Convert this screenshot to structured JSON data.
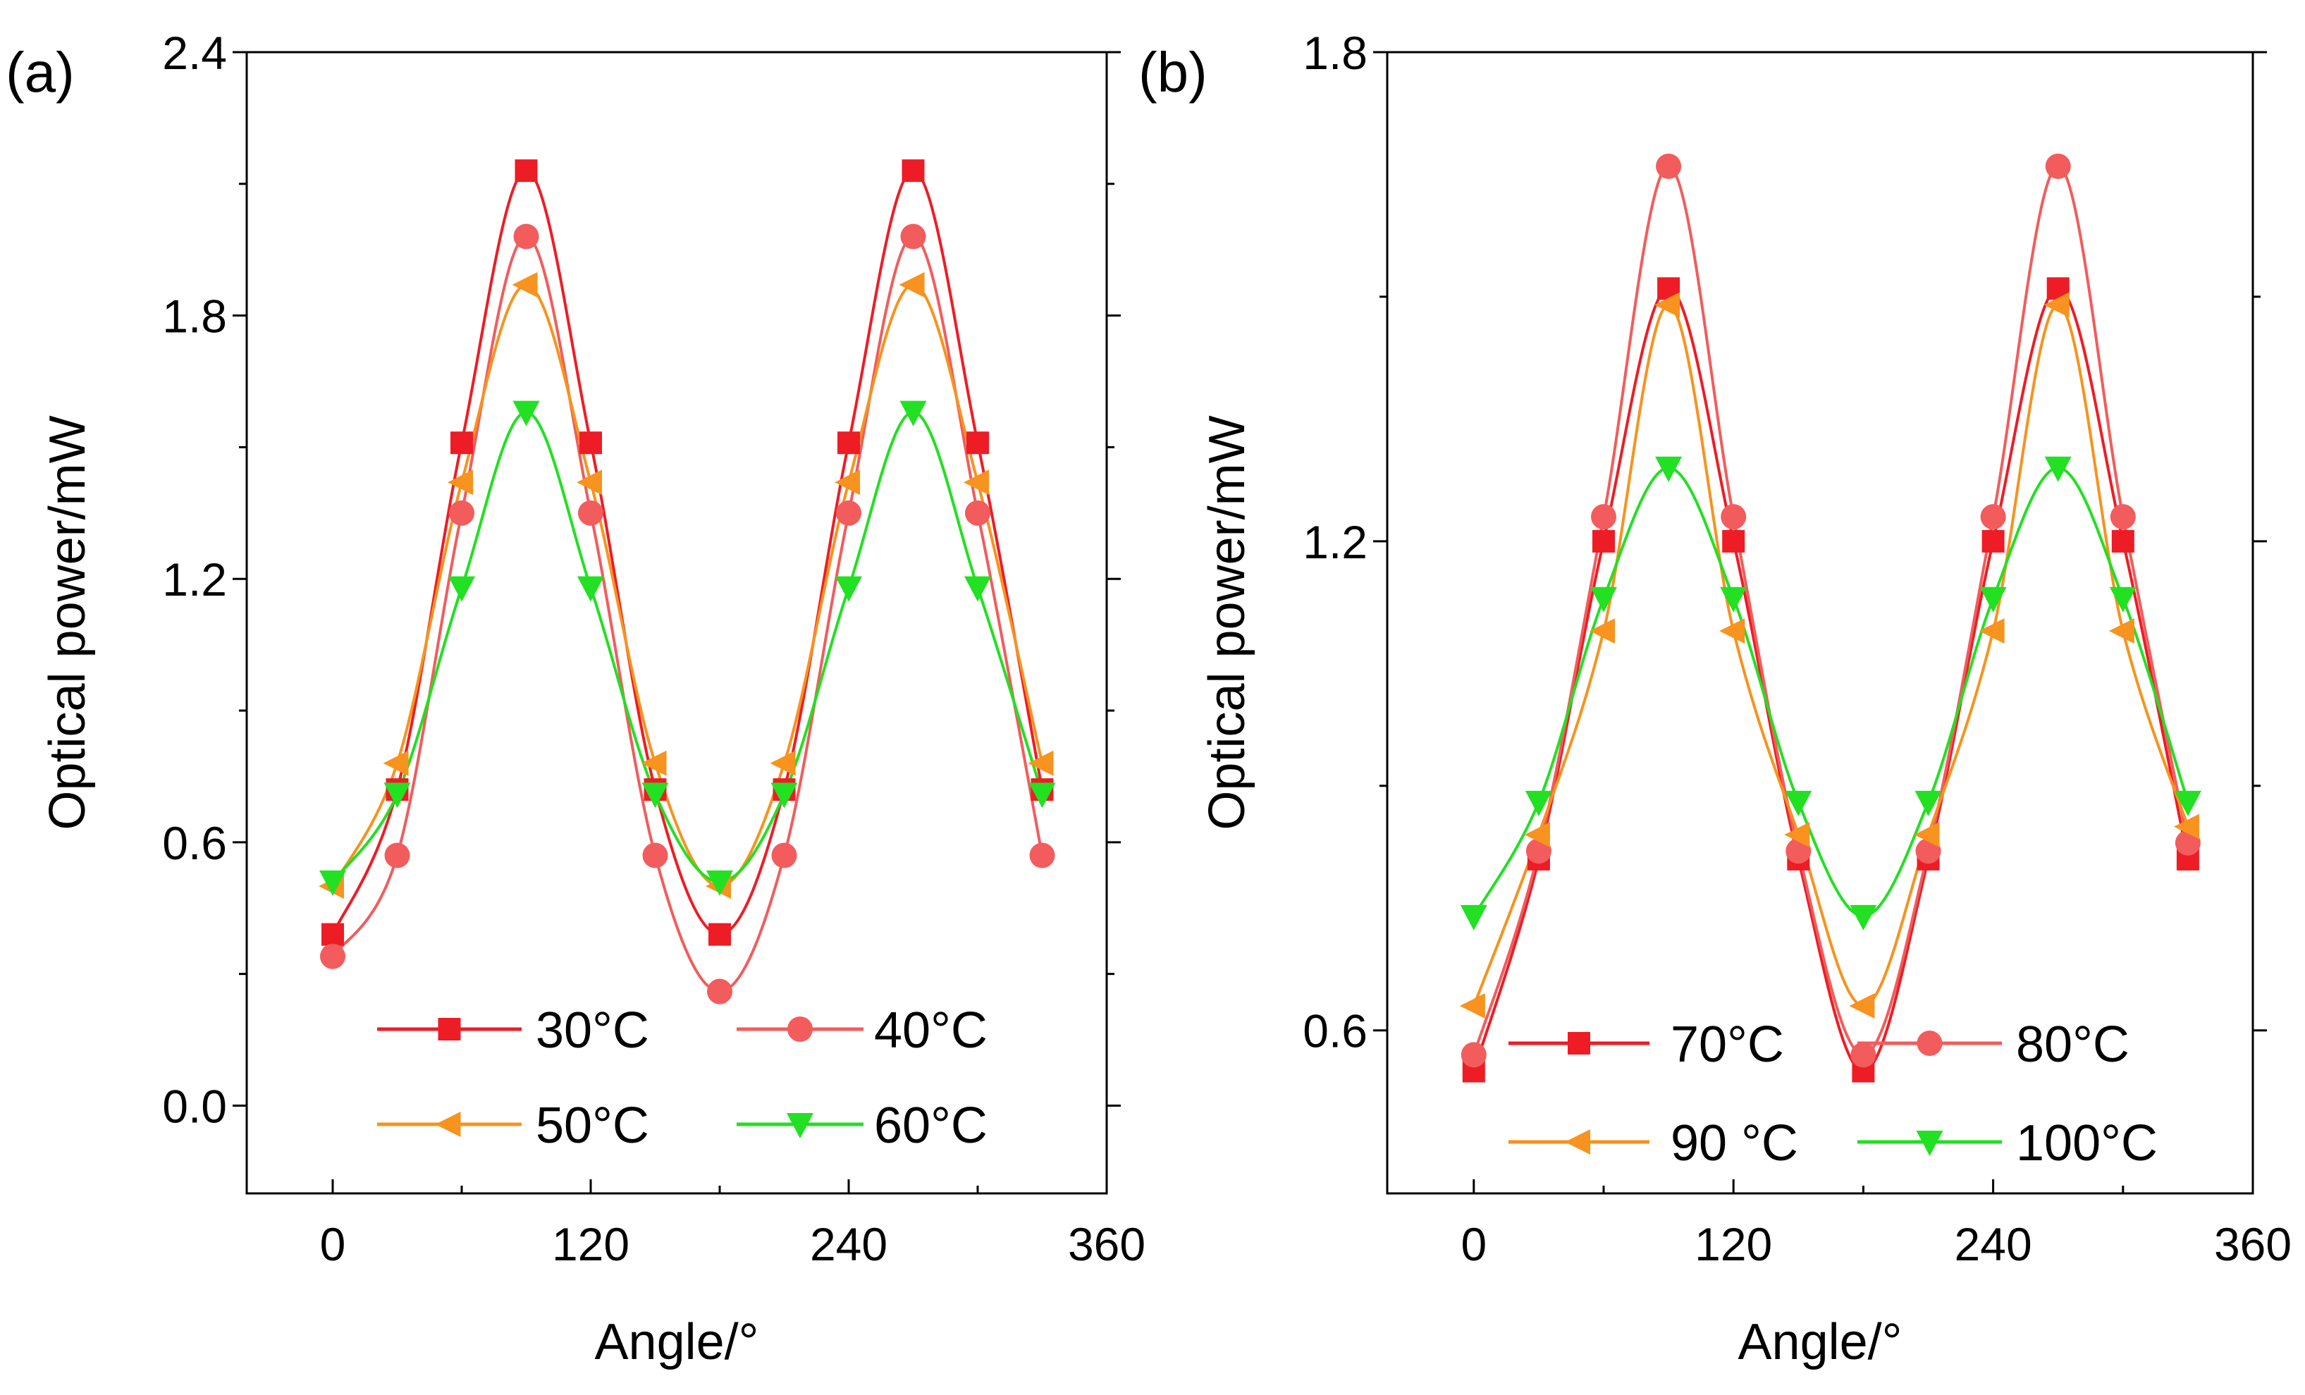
{
  "chart_data": [
    {
      "panel_label": "(a)",
      "type": "line",
      "xlabel": "Angle/°",
      "ylabel": "Optical power/mW",
      "xlim": [
        -40,
        360
      ],
      "ylim": [
        -0.2,
        2.4
      ],
      "xticks": [
        0,
        120,
        240,
        360
      ],
      "yticks": [
        0.0,
        0.6,
        1.2,
        1.8,
        2.4
      ],
      "ytick_labels": [
        "0.0",
        "0.6",
        "1.2",
        "1.8",
        "2.4"
      ],
      "x": [
        0,
        30,
        60,
        90,
        120,
        150,
        180,
        210,
        240,
        270,
        300,
        330
      ],
      "legend_position": "bottom-center",
      "series": [
        {
          "name": "30°C",
          "color": "#ee1c25",
          "marker": "square",
          "values": [
            0.39,
            0.72,
            1.51,
            2.13,
            1.51,
            0.72,
            0.39,
            0.72,
            1.51,
            2.13,
            1.51,
            0.72
          ]
        },
        {
          "name": "40°C",
          "color": "#f25c5c",
          "marker": "circle",
          "values": [
            0.34,
            0.57,
            1.35,
            1.98,
            1.35,
            0.57,
            0.26,
            0.57,
            1.35,
            1.98,
            1.35,
            0.57
          ]
        },
        {
          "name": "50°C",
          "color": "#f7931e",
          "marker": "triangle-left",
          "values": [
            0.5,
            0.78,
            1.42,
            1.87,
            1.42,
            0.78,
            0.5,
            0.78,
            1.42,
            1.87,
            1.42,
            0.78
          ]
        },
        {
          "name": "60°C",
          "color": "#22e022",
          "marker": "triangle-down",
          "values": [
            0.51,
            0.71,
            1.18,
            1.58,
            1.18,
            0.71,
            0.51,
            0.71,
            1.18,
            1.58,
            1.18,
            0.71
          ]
        }
      ]
    },
    {
      "panel_label": "(b)",
      "type": "line",
      "xlabel": "Angle/°",
      "ylabel": "Optical power/mW",
      "xlim": [
        -40,
        360
      ],
      "ylim": [
        0.4,
        1.8
      ],
      "xticks": [
        0,
        120,
        240,
        360
      ],
      "yticks": [
        0.6,
        1.2,
        1.8
      ],
      "ytick_labels": [
        "0.6",
        "1.2",
        "1.8"
      ],
      "x": [
        0,
        30,
        60,
        90,
        120,
        150,
        180,
        210,
        240,
        270,
        300,
        330
      ],
      "legend_position": "bottom-center",
      "series": [
        {
          "name": "70°C",
          "color": "#ee1c25",
          "marker": "square",
          "values": [
            0.55,
            0.81,
            1.2,
            1.51,
            1.2,
            0.81,
            0.55,
            0.81,
            1.2,
            1.51,
            1.2,
            0.81
          ]
        },
        {
          "name": "80°C",
          "color": "#f25c5c",
          "marker": "circle",
          "values": [
            0.57,
            0.82,
            1.23,
            1.66,
            1.23,
            0.82,
            0.57,
            0.82,
            1.23,
            1.66,
            1.23,
            0.83
          ]
        },
        {
          "name": "90 °C",
          "color": "#f7931e",
          "marker": "triangle-left",
          "values": [
            0.63,
            0.84,
            1.09,
            1.49,
            1.09,
            0.84,
            0.63,
            0.84,
            1.09,
            1.49,
            1.09,
            0.85
          ]
        },
        {
          "name": "100°C",
          "color": "#22e022",
          "marker": "triangle-down",
          "values": [
            0.74,
            0.88,
            1.13,
            1.29,
            1.13,
            0.88,
            0.74,
            0.88,
            1.13,
            1.29,
            1.13,
            0.88
          ]
        }
      ]
    }
  ]
}
